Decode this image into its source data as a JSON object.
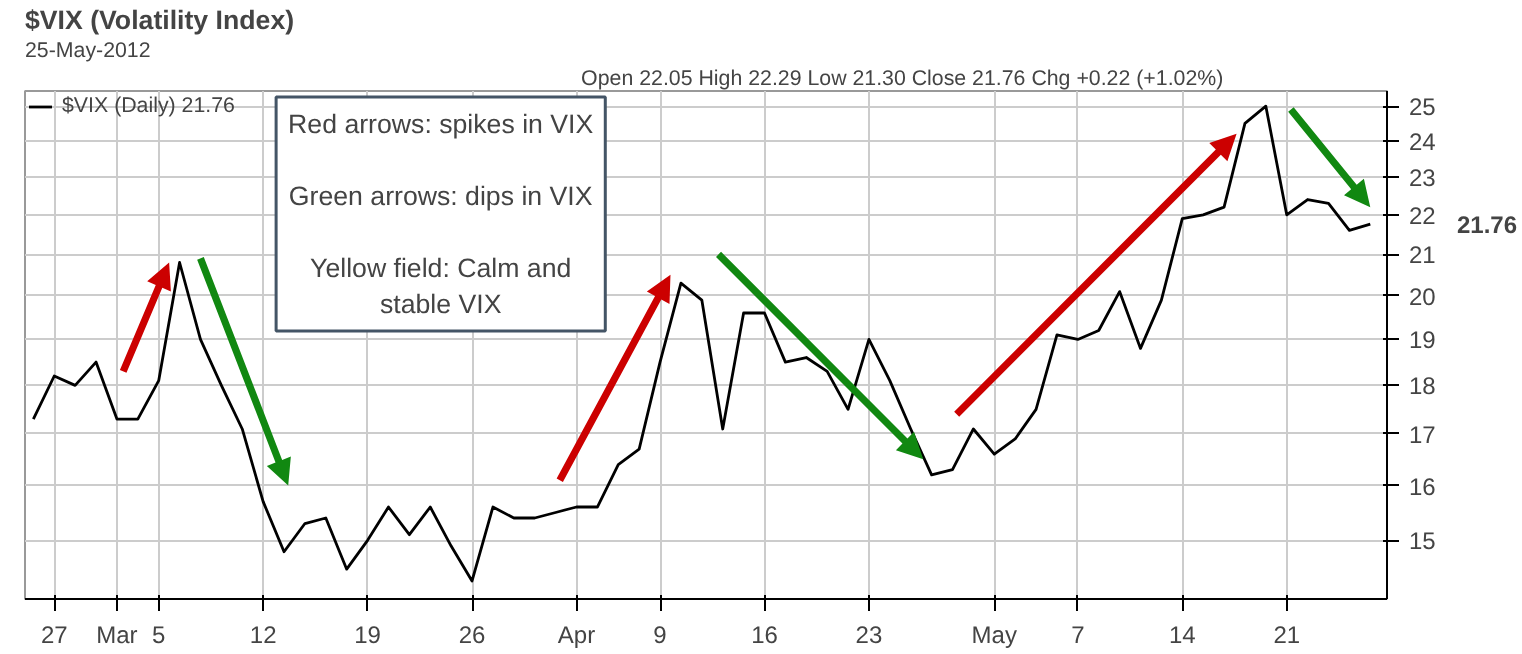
{
  "chart_data": {
    "type": "line",
    "title": "$VIX (Volatility Index)",
    "subtitle": "25-May-2012",
    "categories": [
      null,
      "27",
      null,
      null,
      "Mar",
      null,
      "5",
      null,
      null,
      null,
      null,
      "12",
      null,
      null,
      null,
      null,
      "19",
      null,
      null,
      null,
      null,
      "26",
      null,
      null,
      null,
      null,
      "Apr",
      null,
      null,
      null,
      "9",
      null,
      null,
      null,
      null,
      "16",
      null,
      null,
      null,
      null,
      "23",
      null,
      null,
      null,
      null,
      null,
      "May",
      null,
      null,
      null,
      "7",
      null,
      null,
      null,
      null,
      "14",
      null,
      null,
      null,
      null,
      "21",
      null,
      null,
      null,
      null
    ],
    "series": [
      {
        "name": "$VIX (Daily) 21.76",
        "color": "#000000",
        "values": [
          17.3,
          18.2,
          18.0,
          18.5,
          17.3,
          17.3,
          18.1,
          20.8,
          19.0,
          18.0,
          17.1,
          15.7,
          14.8,
          15.3,
          15.4,
          14.5,
          15.0,
          15.6,
          15.1,
          15.6,
          14.9,
          14.3,
          15.6,
          15.4,
          15.4,
          15.5,
          15.6,
          15.6,
          16.4,
          16.7,
          18.5,
          20.3,
          19.9,
          17.1,
          19.6,
          19.6,
          18.5,
          18.6,
          18.3,
          17.5,
          19.0,
          18.1,
          17.1,
          16.2,
          16.3,
          17.1,
          16.6,
          16.9,
          17.5,
          19.1,
          19.0,
          19.2,
          20.1,
          18.8,
          19.9,
          21.9,
          22.0,
          22.2,
          24.5,
          25.0,
          22.0,
          22.4,
          22.3,
          21.6,
          21.76
        ]
      }
    ],
    "ylim": [
      14,
      25.45
    ],
    "yticks": [
      15,
      16,
      17,
      18,
      19,
      20,
      21,
      22,
      23,
      24,
      25
    ],
    "log": "y",
    "grid": true,
    "legend": "top left",
    "marker": "none",
    "annotations": [
      "Red arrows: spikes in VIX\n\nGreen arrows: dips in VIX\n\nYellow field: Calm and\nstable VIX",
      "Open 22.05  High 22.29  Low 21.30  Close 21.76  Chg +0.22 (+1.02%)",
      "21.76"
    ]
  }
}
